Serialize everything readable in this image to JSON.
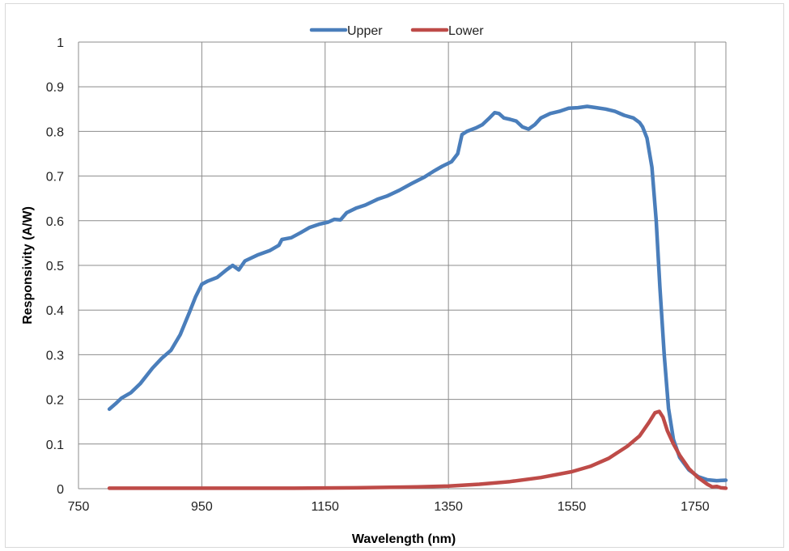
{
  "chart_data": {
    "type": "line",
    "xlabel": "Wavelength (nm)",
    "ylabel": "Responsivity (A/W)",
    "xlim": [
      750,
      1800
    ],
    "ylim": [
      0,
      1
    ],
    "x_ticks": [
      750,
      950,
      1150,
      1350,
      1550,
      1750
    ],
    "y_ticks": [
      0,
      0.1,
      0.2,
      0.3,
      0.4,
      0.5,
      0.6,
      0.7,
      0.8,
      0.9,
      1
    ],
    "grid": true,
    "legend_position": "top-center",
    "series": [
      {
        "name": "Upper",
        "color": "#4a7ebb",
        "points": [
          [
            800,
            0.178
          ],
          [
            810,
            0.19
          ],
          [
            820,
            0.203
          ],
          [
            835,
            0.215
          ],
          [
            850,
            0.235
          ],
          [
            870,
            0.27
          ],
          [
            885,
            0.292
          ],
          [
            900,
            0.31
          ],
          [
            915,
            0.345
          ],
          [
            930,
            0.395
          ],
          [
            940,
            0.43
          ],
          [
            950,
            0.458
          ],
          [
            960,
            0.465
          ],
          [
            975,
            0.473
          ],
          [
            990,
            0.49
          ],
          [
            1000,
            0.5
          ],
          [
            1010,
            0.49
          ],
          [
            1020,
            0.51
          ],
          [
            1040,
            0.523
          ],
          [
            1060,
            0.533
          ],
          [
            1075,
            0.545
          ],
          [
            1080,
            0.558
          ],
          [
            1095,
            0.562
          ],
          [
            1110,
            0.573
          ],
          [
            1125,
            0.585
          ],
          [
            1140,
            0.592
          ],
          [
            1155,
            0.597
          ],
          [
            1165,
            0.603
          ],
          [
            1175,
            0.602
          ],
          [
            1185,
            0.618
          ],
          [
            1200,
            0.628
          ],
          [
            1215,
            0.635
          ],
          [
            1235,
            0.648
          ],
          [
            1250,
            0.655
          ],
          [
            1270,
            0.668
          ],
          [
            1290,
            0.683
          ],
          [
            1310,
            0.697
          ],
          [
            1325,
            0.71
          ],
          [
            1340,
            0.722
          ],
          [
            1355,
            0.732
          ],
          [
            1365,
            0.75
          ],
          [
            1372,
            0.793
          ],
          [
            1380,
            0.8
          ],
          [
            1395,
            0.808
          ],
          [
            1405,
            0.815
          ],
          [
            1415,
            0.828
          ],
          [
            1425,
            0.842
          ],
          [
            1432,
            0.84
          ],
          [
            1440,
            0.83
          ],
          [
            1450,
            0.827
          ],
          [
            1460,
            0.823
          ],
          [
            1470,
            0.81
          ],
          [
            1480,
            0.805
          ],
          [
            1490,
            0.815
          ],
          [
            1500,
            0.83
          ],
          [
            1515,
            0.84
          ],
          [
            1530,
            0.845
          ],
          [
            1545,
            0.852
          ],
          [
            1560,
            0.853
          ],
          [
            1575,
            0.856
          ],
          [
            1590,
            0.853
          ],
          [
            1605,
            0.85
          ],
          [
            1620,
            0.845
          ],
          [
            1635,
            0.836
          ],
          [
            1650,
            0.83
          ],
          [
            1660,
            0.82
          ],
          [
            1665,
            0.81
          ],
          [
            1672,
            0.785
          ],
          [
            1680,
            0.72
          ],
          [
            1687,
            0.6
          ],
          [
            1693,
            0.45
          ],
          [
            1700,
            0.3
          ],
          [
            1707,
            0.18
          ],
          [
            1715,
            0.11
          ],
          [
            1725,
            0.07
          ],
          [
            1740,
            0.042
          ],
          [
            1755,
            0.027
          ],
          [
            1770,
            0.02
          ],
          [
            1785,
            0.018
          ],
          [
            1800,
            0.019
          ]
        ]
      },
      {
        "name": "Lower",
        "color": "#be4b48",
        "points": [
          [
            800,
            0.001
          ],
          [
            950,
            0.001
          ],
          [
            1100,
            0.001
          ],
          [
            1200,
            0.002
          ],
          [
            1300,
            0.004
          ],
          [
            1350,
            0.006
          ],
          [
            1400,
            0.01
          ],
          [
            1450,
            0.016
          ],
          [
            1500,
            0.025
          ],
          [
            1550,
            0.038
          ],
          [
            1580,
            0.05
          ],
          [
            1610,
            0.068
          ],
          [
            1640,
            0.095
          ],
          [
            1660,
            0.118
          ],
          [
            1675,
            0.148
          ],
          [
            1685,
            0.17
          ],
          [
            1692,
            0.173
          ],
          [
            1698,
            0.16
          ],
          [
            1705,
            0.13
          ],
          [
            1715,
            0.1
          ],
          [
            1725,
            0.075
          ],
          [
            1740,
            0.045
          ],
          [
            1755,
            0.025
          ],
          [
            1770,
            0.01
          ],
          [
            1778,
            0.004
          ],
          [
            1785,
            0.005
          ],
          [
            1792,
            0.002
          ],
          [
            1800,
            0.001
          ]
        ]
      }
    ]
  }
}
